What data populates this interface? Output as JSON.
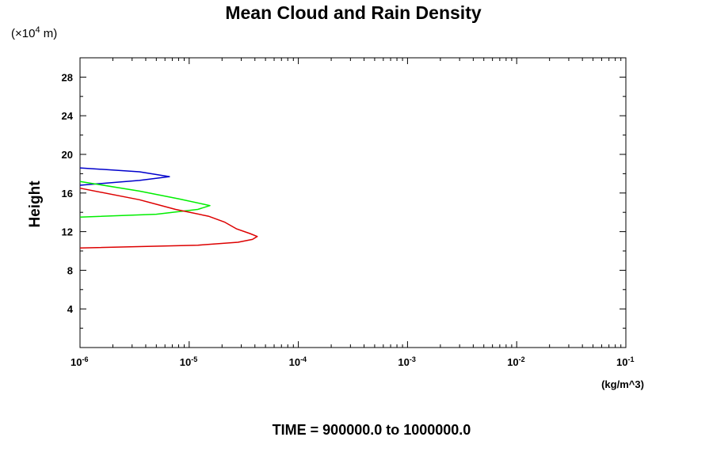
{
  "chart_data": {
    "type": "line",
    "title": "Mean Cloud and Rain Density",
    "ylabel": "Height",
    "y_scale_note": "(×10",
    "y_scale_exp": "4",
    "y_scale_unit": " m)",
    "x_unit": "(kg/m^3)",
    "x_scale": "log",
    "xlim": [
      1e-06,
      0.1
    ],
    "ylim": [
      0,
      30
    ],
    "x_ticks": [
      {
        "base": "10",
        "exp": "-6"
      },
      {
        "base": "10",
        "exp": "-5"
      },
      {
        "base": "10",
        "exp": "-4"
      },
      {
        "base": "10",
        "exp": "-3"
      },
      {
        "base": "10",
        "exp": "-2"
      },
      {
        "base": "10",
        "exp": "-1"
      }
    ],
    "y_ticks": [
      "4",
      "8",
      "12",
      "16",
      "20",
      "24",
      "28"
    ],
    "caption": "TIME = 900000.0 to 1000000.0",
    "series": [
      {
        "color": "#0000cc",
        "points": [
          [
            1e-06,
            16.8
          ],
          [
            3.5e-06,
            17.3
          ],
          [
            6.6e-06,
            17.7
          ],
          [
            3.5e-06,
            18.2
          ],
          [
            1e-06,
            18.6
          ]
        ]
      },
      {
        "color": "#00ee00",
        "points": [
          [
            1e-06,
            13.5
          ],
          [
            5e-06,
            13.8
          ],
          [
            1.2e-05,
            14.3
          ],
          [
            1.55e-05,
            14.7
          ],
          [
            8e-06,
            15.4
          ],
          [
            3.5e-06,
            16.2
          ],
          [
            1e-06,
            17.2
          ]
        ]
      },
      {
        "color": "#dd0000",
        "points": [
          [
            1e-06,
            10.3
          ],
          [
            1.2e-05,
            10.6
          ],
          [
            2.8e-05,
            10.9
          ],
          [
            3.8e-05,
            11.2
          ],
          [
            4.2e-05,
            11.5
          ],
          [
            3.6e-05,
            11.8
          ],
          [
            2.7e-05,
            12.3
          ],
          [
            2.1e-05,
            13.0
          ],
          [
            1.5e-05,
            13.6
          ],
          [
            7.5e-06,
            14.3
          ],
          [
            3.5e-06,
            15.3
          ],
          [
            1e-06,
            16.5
          ]
        ]
      }
    ]
  }
}
